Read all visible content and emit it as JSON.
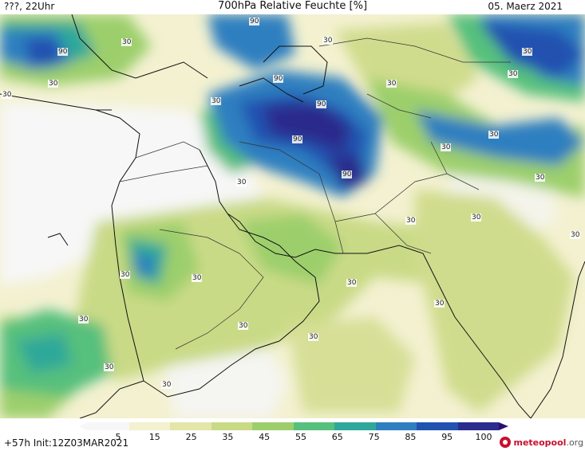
{
  "header": {
    "left": "???, 22Uhr",
    "center": "700hPa Relative Feuchte [%]",
    "right": "05. Maerz 2021"
  },
  "footer": {
    "left": "+57h Init:12Z03MAR2021",
    "logo_main": "meteopool",
    "logo_tld": ".org"
  },
  "colorbar": {
    "ticks": [
      "5",
      "15",
      "25",
      "35",
      "45",
      "55",
      "65",
      "75",
      "85",
      "95",
      "100"
    ],
    "colors": [
      "#f7f7f7",
      "#f3f1d0",
      "#e4e6a8",
      "#c9da86",
      "#9ccf6c",
      "#57c07d",
      "#2fa89a",
      "#2d7fc0",
      "#2251b0",
      "#2b2c8c",
      "#2b0f6e"
    ]
  },
  "contour_labels": [
    "90",
    "90",
    "90",
    "90",
    "90",
    "90",
    "30",
    "30",
    "30",
    "30",
    "30",
    "30",
    "30",
    "30",
    "30",
    "30",
    "30",
    "30",
    "30",
    "30",
    "30",
    "30",
    "30",
    "30",
    "30",
    "30",
    "30",
    "30",
    "30",
    "30"
  ]
}
